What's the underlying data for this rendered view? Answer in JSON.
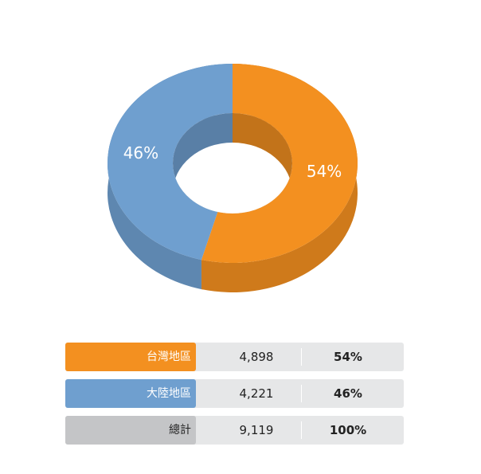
{
  "chart_data": {
    "type": "donut3d",
    "categories": [
      "台灣地區",
      "大陸地區"
    ],
    "values": [
      54,
      46
    ],
    "value_labels": [
      "54%",
      "46%"
    ],
    "colors": [
      "#f39020",
      "#6f9fcf"
    ]
  },
  "table": {
    "rows": [
      [
        "台灣地區",
        "4,898",
        "54%"
      ],
      [
        "大陸地區",
        "4,221",
        "46%"
      ],
      [
        "總計",
        "9,119",
        "100%"
      ]
    ]
  }
}
